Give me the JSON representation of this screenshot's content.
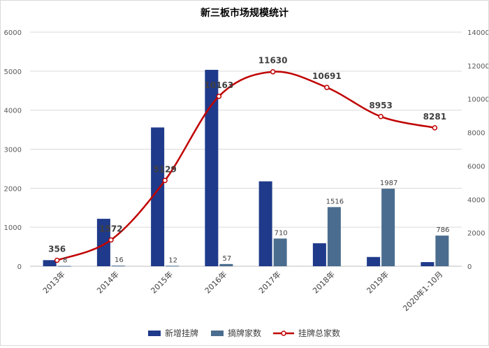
{
  "chart_data": {
    "type": "bar+line",
    "title": "新三板市场规模统计",
    "categories": [
      "2013年",
      "2014年",
      "2015年",
      "2016年",
      "2017年",
      "2018年",
      "2019年",
      "2020年1-10月"
    ],
    "series": [
      {
        "name": "新增挂牌",
        "type": "bar",
        "axis": "left",
        "color": "#1f3a8a",
        "values": [
          156,
          1216,
          3557,
          5034,
          2176,
          589,
          237,
          106
        ],
        "labels": []
      },
      {
        "name": "摘牌家数",
        "type": "bar",
        "axis": "left",
        "color": "#4a6d8f",
        "values": [
          8,
          16,
          12,
          57,
          710,
          1516,
          1987,
          786
        ],
        "labels": [
          "8",
          "16",
          "12",
          "57",
          "710",
          "1516",
          "1987",
          "786"
        ]
      },
      {
        "name": "挂牌总家数",
        "type": "line",
        "axis": "right",
        "color": "#c00000",
        "values": [
          356,
          1572,
          5129,
          10163,
          11630,
          10691,
          8953,
          8281
        ],
        "labels": [
          "356",
          "1572",
          "5129",
          "10163",
          "11630",
          "10691",
          "8953",
          "8281"
        ]
      }
    ],
    "y_left": {
      "min": 0,
      "max": 6000,
      "ticks": [
        "0",
        "1000",
        "2000",
        "3000",
        "4000",
        "5000",
        "6000"
      ]
    },
    "y_right": {
      "min": 0,
      "max": 14000,
      "ticks": [
        "0",
        "2000",
        "4000",
        "6000",
        "8000",
        "10000",
        "12000",
        "14000"
      ]
    },
    "grid": true,
    "legend_position": "bottom"
  }
}
